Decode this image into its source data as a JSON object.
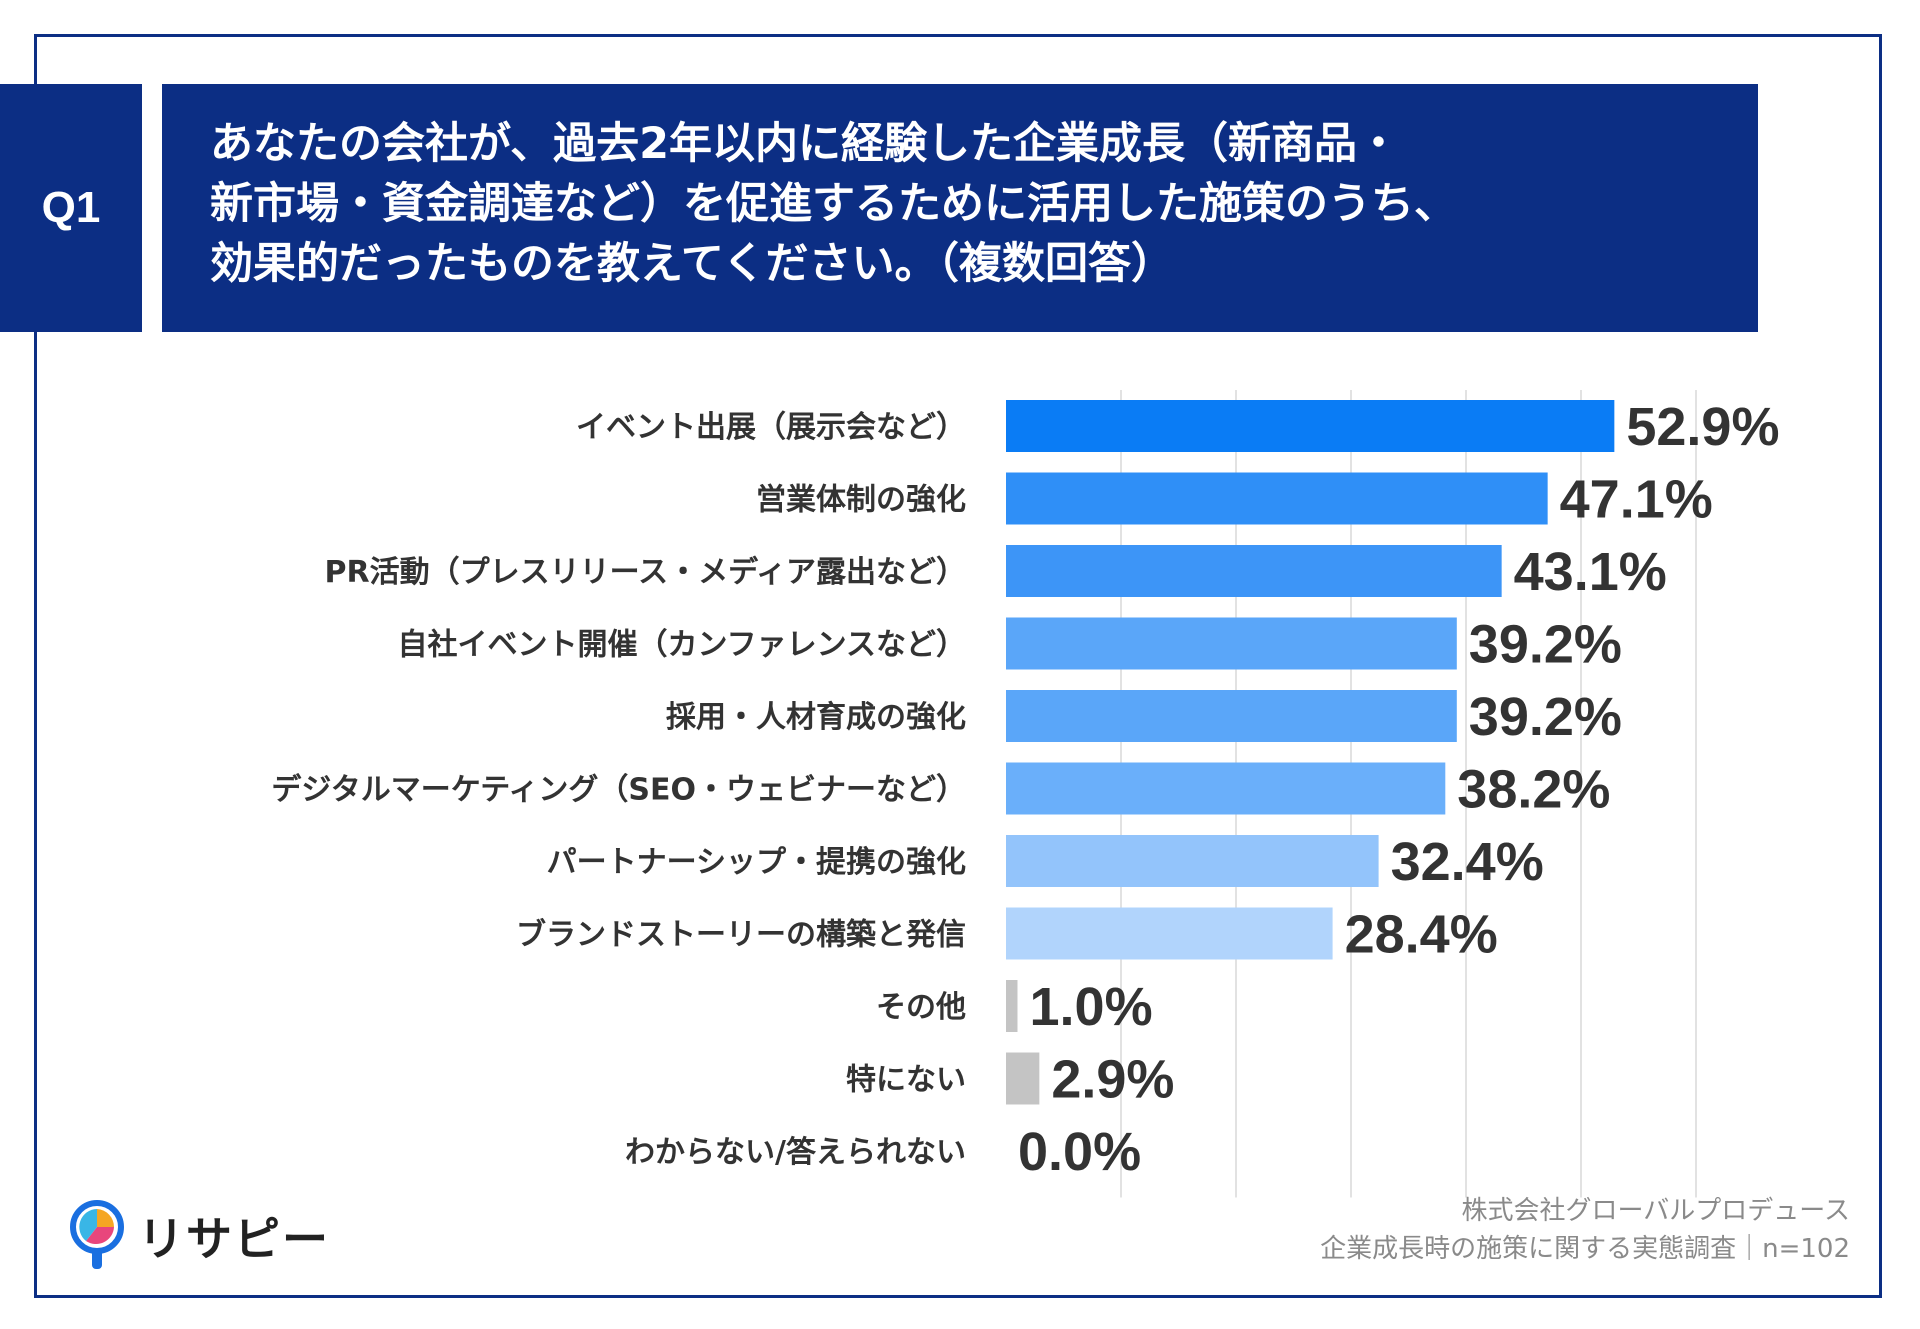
{
  "header": {
    "badge": "Q1",
    "title_lines": [
      "あなたの会社が、過去2年以内に経験した企業成長（新商品・",
      "新市場・資金調達など）を促進するために活用した施策のうち、",
      "効果的だったものを教えてください。（複数回答）"
    ]
  },
  "chart_data": {
    "type": "bar",
    "orientation": "horizontal",
    "categories": [
      "イベント出展（展示会など）",
      "営業体制の強化",
      "PR活動（プレスリリース・メディア露出など）",
      "自社イベント開催（カンファレンスなど）",
      "採用・人材育成の強化",
      "デジタルマーケティング（SEO・ウェビナーなど）",
      "パートナーシップ・提携の強化",
      "ブランドストーリーの構築と発信",
      "その他",
      "特にない",
      "わからない/答えられない"
    ],
    "values": [
      52.9,
      47.1,
      43.1,
      39.2,
      39.2,
      38.2,
      32.4,
      28.4,
      1.0,
      2.9,
      0.0
    ],
    "value_labels": [
      "52.9%",
      "47.1%",
      "43.1%",
      "39.2%",
      "39.2%",
      "38.2%",
      "32.4%",
      "28.4%",
      "1.0%",
      "2.9%",
      "0.0%"
    ],
    "bar_colors": [
      "#0a7cf5",
      "#2f8ff7",
      "#3d95f7",
      "#5aa6f9",
      "#5aa6f9",
      "#6aaffa",
      "#93c4fb",
      "#b1d4fc",
      "#c4c4c4",
      "#c4c4c4",
      "#c4c4c4"
    ],
    "xlim": [
      0,
      60
    ],
    "grid": true
  },
  "footer": {
    "source_lines": [
      "株式会社グローバルプロデュース",
      "企業成長時の施策に関する実態調査｜n=102"
    ],
    "logo_text": "リサピー"
  }
}
